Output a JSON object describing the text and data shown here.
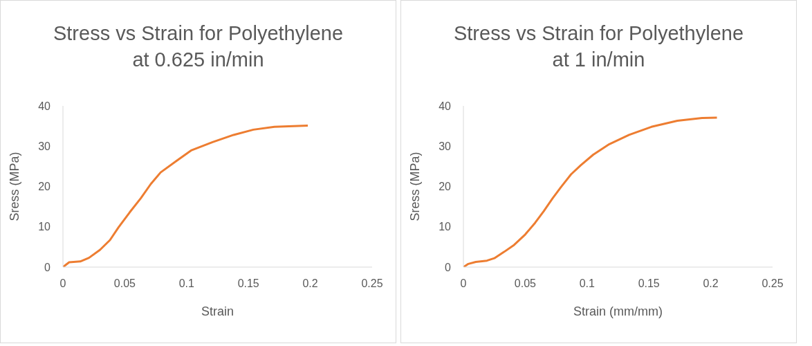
{
  "chart_data": [
    {
      "type": "line",
      "title": "Stress vs Strain for Polyethylene at 0.625 in/min",
      "xlabel": "Strain",
      "ylabel": "Sress (MPa)",
      "color": "#ed7d31",
      "marker": "none",
      "x": [
        0,
        0.005,
        0.014,
        0.021,
        0.03,
        0.038,
        0.045,
        0.054,
        0.063,
        0.071,
        0.079,
        0.092,
        0.104,
        0.121,
        0.138,
        0.154,
        0.171,
        0.198
      ],
      "values": [
        0,
        1.2,
        1.4,
        2.3,
        4.3,
        6.7,
        9.9,
        13.6,
        17.1,
        20.6,
        23.5,
        26.4,
        29.0,
        31.0,
        32.8,
        34.1,
        34.8,
        35.1
      ],
      "xlim": [
        0,
        0.25
      ],
      "xticks": [
        0,
        0.05,
        0.1,
        0.15,
        0.2,
        0.25
      ],
      "ylim": [
        0,
        40
      ],
      "yticks": [
        0,
        10,
        20,
        30,
        40
      ]
    },
    {
      "type": "line",
      "title": "Stress vs Strain for Polyethylene at 1 in/min",
      "xlabel": "Strain (mm/mm)",
      "ylabel": "Sress (MPa)",
      "color": "#ed7d31",
      "marker": "none",
      "x": [
        0,
        0.004,
        0.01,
        0.019,
        0.025,
        0.033,
        0.041,
        0.05,
        0.058,
        0.065,
        0.072,
        0.079,
        0.087,
        0.095,
        0.105,
        0.118,
        0.134,
        0.152,
        0.173,
        0.193,
        0.205
      ],
      "values": [
        0,
        0.8,
        1.3,
        1.6,
        2.2,
        3.8,
        5.5,
        8.1,
        11.0,
        13.9,
        17.0,
        19.9,
        23.0,
        25.3,
        27.9,
        30.5,
        32.8,
        34.8,
        36.3,
        37.0,
        37.1
      ],
      "xlim": [
        0,
        0.25
      ],
      "xticks": [
        0,
        0.05,
        0.1,
        0.15,
        0.2,
        0.25
      ],
      "ylim": [
        0,
        40
      ],
      "yticks": [
        0,
        10,
        20,
        30,
        40
      ]
    }
  ]
}
